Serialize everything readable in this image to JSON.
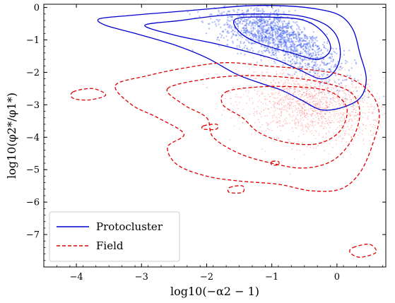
{
  "chart_data": {
    "type": "scatter",
    "title": "",
    "xlabel": "log10(−α2 − 1)",
    "ylabel": "log10(φ2*/φ1*)",
    "xlim": [
      -4.5,
      0.75
    ],
    "ylim": [
      -8.0,
      0.1
    ],
    "xticks": [
      -4,
      -3,
      -2,
      -1,
      0
    ],
    "yticks": [
      0,
      -1,
      -2,
      -3,
      -4,
      -5,
      -6,
      -7
    ],
    "xtick_labels": [
      "−4",
      "−3",
      "−2",
      "−1",
      "0"
    ],
    "ytick_labels": [
      "0",
      "−1",
      "−2",
      "−3",
      "−4",
      "−5",
      "−6",
      "−7"
    ],
    "grid": false,
    "legend_position": "bottom-left",
    "series": [
      {
        "name": "Protocluster",
        "color": "#0000cc",
        "linestyle": "solid",
        "center": [
          -0.9,
          -0.8
        ],
        "contours": [
          [
            [
              -3.65,
              -0.35
            ],
            [
              -3.2,
              -0.25
            ],
            [
              -2.6,
              -0.15
            ],
            [
              -2.0,
              -0.05
            ],
            [
              -1.4,
              0.05
            ],
            [
              -0.8,
              0.05
            ],
            [
              -0.3,
              -0.05
            ],
            [
              0.05,
              -0.25
            ],
            [
              0.25,
              -0.7
            ],
            [
              0.35,
              -1.4
            ],
            [
              0.45,
              -2.2
            ],
            [
              0.35,
              -2.8
            ],
            [
              0.05,
              -3.1
            ],
            [
              -0.25,
              -3.15
            ],
            [
              -0.55,
              -2.85
            ],
            [
              -0.85,
              -2.55
            ],
            [
              -1.15,
              -2.35
            ],
            [
              -1.55,
              -2.05
            ],
            [
              -2.0,
              -1.55
            ],
            [
              -2.5,
              -1.15
            ],
            [
              -3.1,
              -0.8
            ],
            [
              -3.55,
              -0.55
            ]
          ],
          [
            [
              -2.95,
              -0.55
            ],
            [
              -2.4,
              -0.4
            ],
            [
              -1.8,
              -0.25
            ],
            [
              -1.2,
              -0.2
            ],
            [
              -0.6,
              -0.25
            ],
            [
              -0.2,
              -0.5
            ],
            [
              0.0,
              -0.9
            ],
            [
              0.05,
              -1.5
            ],
            [
              -0.05,
              -2.0
            ],
            [
              -0.25,
              -2.2
            ],
            [
              -0.6,
              -1.9
            ],
            [
              -0.95,
              -1.6
            ],
            [
              -1.4,
              -1.35
            ],
            [
              -1.9,
              -1.1
            ],
            [
              -2.5,
              -0.85
            ]
          ],
          [
            [
              -1.55,
              -0.35
            ],
            [
              -1.0,
              -0.3
            ],
            [
              -0.5,
              -0.4
            ],
            [
              -0.2,
              -0.8
            ],
            [
              -0.1,
              -1.3
            ],
            [
              -0.3,
              -1.6
            ],
            [
              -0.7,
              -1.4
            ],
            [
              -1.2,
              -1.1
            ],
            [
              -1.5,
              -0.75
            ]
          ]
        ]
      },
      {
        "name": "Field",
        "color": "#dd0000",
        "linestyle": "dashed",
        "center": [
          -0.4,
          -3.0
        ],
        "contours": [
          [
            [
              -3.4,
              -2.4
            ],
            [
              -2.9,
              -2.1
            ],
            [
              -2.3,
              -1.85
            ],
            [
              -1.7,
              -1.7
            ],
            [
              -1.1,
              -1.8
            ],
            [
              -0.5,
              -1.9
            ],
            [
              0.1,
              -2.1
            ],
            [
              0.5,
              -2.6
            ],
            [
              0.65,
              -3.3
            ],
            [
              0.55,
              -4.2
            ],
            [
              0.35,
              -5.1
            ],
            [
              0.05,
              -5.6
            ],
            [
              -0.4,
              -5.65
            ],
            [
              -0.9,
              -5.45
            ],
            [
              -1.5,
              -5.35
            ],
            [
              -2.0,
              -5.2
            ],
            [
              -2.45,
              -4.85
            ],
            [
              -2.6,
              -4.3
            ],
            [
              -2.35,
              -3.9
            ],
            [
              -2.75,
              -3.4
            ],
            [
              -3.15,
              -3.0
            ]
          ],
          [
            [
              -2.6,
              -2.5
            ],
            [
              -2.0,
              -2.2
            ],
            [
              -1.4,
              -2.1
            ],
            [
              -0.8,
              -2.15
            ],
            [
              -0.25,
              -2.3
            ],
            [
              0.2,
              -2.6
            ],
            [
              0.35,
              -3.2
            ],
            [
              0.25,
              -4.0
            ],
            [
              -0.05,
              -4.7
            ],
            [
              -0.5,
              -4.95
            ],
            [
              -1.0,
              -4.8
            ],
            [
              -1.5,
              -4.5
            ],
            [
              -1.9,
              -4.0
            ],
            [
              -2.0,
              -3.4
            ],
            [
              -2.35,
              -3.0
            ]
          ],
          [
            [
              -1.7,
              -2.6
            ],
            [
              -1.2,
              -2.45
            ],
            [
              -0.6,
              -2.45
            ],
            [
              -0.1,
              -2.6
            ],
            [
              0.15,
              -3.1
            ],
            [
              0.05,
              -3.8
            ],
            [
              -0.3,
              -4.2
            ],
            [
              -0.8,
              -4.15
            ],
            [
              -1.2,
              -3.85
            ],
            [
              -1.45,
              -3.4
            ],
            [
              -1.75,
              -3.0
            ]
          ],
          [
            [
              -4.05,
              -2.6
            ],
            [
              -3.75,
              -2.5
            ],
            [
              -3.55,
              -2.7
            ],
            [
              -3.8,
              -2.85
            ],
            [
              -4.05,
              -2.8
            ]
          ],
          [
            [
              -2.05,
              -3.65
            ],
            [
              -1.85,
              -3.6
            ],
            [
              -1.85,
              -3.75
            ],
            [
              -2.05,
              -3.75
            ]
          ],
          [
            [
              -1.65,
              -5.55
            ],
            [
              -1.45,
              -5.5
            ],
            [
              -1.45,
              -5.7
            ],
            [
              -1.65,
              -5.7
            ]
          ],
          [
            [
              -1.0,
              -4.75
            ],
            [
              -0.9,
              -4.75
            ],
            [
              -0.9,
              -4.85
            ],
            [
              -1.0,
              -4.85
            ]
          ],
          [
            [
              0.25,
              -7.4
            ],
            [
              0.5,
              -7.3
            ],
            [
              0.6,
              -7.55
            ],
            [
              0.35,
              -7.7
            ],
            [
              0.2,
              -7.55
            ]
          ]
        ]
      }
    ]
  }
}
